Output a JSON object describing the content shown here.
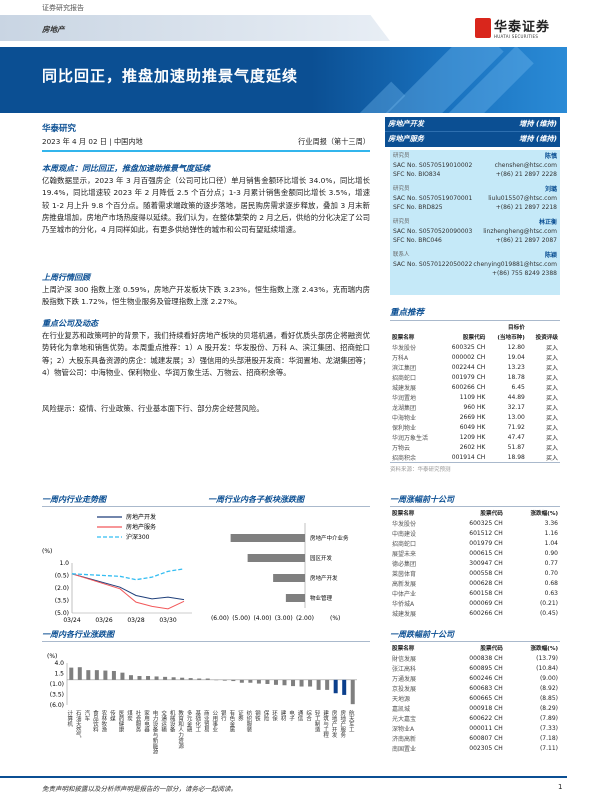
{
  "header": {
    "top_label": "证券研究报告",
    "sector": "房地产",
    "logo_cn": "华泰证券",
    "logo_en": "HUATAI SECURITIES",
    "title": "同比回正，推盘加速助推景气度延续"
  },
  "meta": {
    "org": "华泰研究",
    "date": "2023 年 4 月 02 日 | 中国内地",
    "report_type": "行业周报（第十三周）"
  },
  "ratings": [
    {
      "sector": "房地产开发",
      "rating": "增持",
      "note": "(维持)"
    },
    {
      "sector": "房地产服务",
      "rating": "增持",
      "note": "(维持)"
    }
  ],
  "analysts": [
    {
      "role": "研究员",
      "name": "陈慎",
      "sac": "SAC No. S0570519010002",
      "sfc": "SFC No. BIO834",
      "email": "chenshen@htsc.com",
      "phone": "+(86) 21 2897 2228"
    },
    {
      "role": "研究员",
      "name": "刘璐",
      "sac": "SAC No. S0570519070001",
      "sfc": "SFC No. BRD825",
      "email": "liulu015507@htsc.com",
      "phone": "+(86) 21 2897 2218"
    },
    {
      "role": "研究员",
      "name": "林正衡",
      "sac": "SAC No. S0570520090003",
      "sfc": "SFC No. BRC046",
      "email": "linzhengheng@htsc.com",
      "phone": "+(86) 21 2897 2087"
    },
    {
      "role": "联系人",
      "name": "陈颖",
      "sac": "SAC No. S0570122050022",
      "sfc": "",
      "email": "chenying019881@htsc.com",
      "phone": "+(86) 755 8249 2388"
    }
  ],
  "sections": {
    "view_title": "本周观点：同比回正，推盘加速助推景气度延续",
    "view_text": "亿翰数据显示，2023 年 3 月百强房企（公司可比口径）单月销售金额环比增长 34.0%，同比增长 19.4%，同比增速较 2023 年 2 月降低 2.5 个百分点；1-3 月累计销售金额同比增长 3.5%，增速较 1-2 月上升 9.8 个百分点。随着需求端政策的逐步落地，居民购房需求逐步释放，叠加 3 月末新房推盘增加，房地产市场热度得以延续。我们认为，在整体繁荣的 2 月之后，供给的分化决定了公司乃至城市的分化，4 月同样如此，有更多供给弹性的城市和公司有望延续增速。",
    "market_title": "上周行情回顾",
    "market_text": "上周沪深 300 指数上涨 0.59%，房地产开发板块下跌 3.23%，恒生指数上涨 2.43%，克而瑞内房股指数下跌 1.72%，恒生物业服务及管理指数上涨 2.27%。",
    "company_title": "重点公司及动态",
    "company_text": "在行业复苏和政策呵护的背景下，我们持续看好房地产板块的贝塔机遇，看好优质头部房企将融资优势转化为拿地和销售优势。本周重点推荐：1）A 股开发：华发股份、万科 A、滨江集团、招商蛇口等；2）大股东具备资源的房企：城建发展；3）强信用的头部港股开发商：华润置地、龙湖集团等；4）物管公司：中海物业、保利物业、华润万象生活、万物云、招商积余等。",
    "risk_text": "风险提示：疫情、行业政策、行业基本面下行、部分房企经营风险。"
  },
  "picks": {
    "title": "重点推荐",
    "headers": [
      "股票名称",
      "股票代码",
      "目标价",
      "(当地币种)",
      "投资评级"
    ],
    "rows": [
      [
        "华发股份",
        "600325 CH",
        "12.80",
        "买入"
      ],
      [
        "万科A",
        "000002 CH",
        "19.04",
        "买入"
      ],
      [
        "滨江集团",
        "002244 CH",
        "13.23",
        "买入"
      ],
      [
        "招商蛇口",
        "001979 CH",
        "18.78",
        "买入"
      ],
      [
        "城建发展",
        "600266 CH",
        "6.45",
        "买入"
      ],
      [
        "华润置地",
        "1109 HK",
        "44.89",
        "买入"
      ],
      [
        "龙湖集团",
        "960 HK",
        "32.17",
        "买入"
      ],
      [
        "中海物业",
        "2669 HK",
        "13.00",
        "买入"
      ],
      [
        "保利物业",
        "6049 HK",
        "71.92",
        "买入"
      ],
      [
        "华润万象生活",
        "1209 HK",
        "47.47",
        "买入"
      ],
      [
        "万物云",
        "2602 HK",
        "51.87",
        "买入"
      ],
      [
        "招商积余",
        "001914 CH",
        "18.98",
        "买入"
      ]
    ],
    "source": "资料来源：华泰研究预测"
  },
  "gainers": {
    "title": "一周涨幅前十公司",
    "headers": [
      "股票名称",
      "股票代码",
      "涨跌幅(%)"
    ],
    "rows": [
      [
        "华发股份",
        "600325 CH",
        "3.36"
      ],
      [
        "中南建设",
        "601512 CH",
        "1.16"
      ],
      [
        "招商蛇口",
        "001979 CH",
        "1.04"
      ],
      [
        "展望未来",
        "000615 CH",
        "0.90"
      ],
      [
        "德必集团",
        "300947 CH",
        "0.77"
      ],
      [
        "莱茵体育",
        "000558 CH",
        "0.70"
      ],
      [
        "高新发展",
        "000628 CH",
        "0.68"
      ],
      [
        "中体产业",
        "600158 CH",
        "0.63"
      ],
      [
        "华侨城A",
        "000069 CH",
        "(0.21)"
      ],
      [
        "城建发展",
        "600266 CH",
        "(0.45)"
      ]
    ]
  },
  "losers": {
    "title": "一周跌幅前十公司",
    "headers": [
      "股票名称",
      "股票代码",
      "涨跌幅(%)"
    ],
    "rows": [
      [
        "財信发展",
        "000838 CH",
        "(13.79)"
      ],
      [
        "张江高科",
        "600895 CH",
        "(10.84)"
      ],
      [
        "万通发展",
        "600246 CH",
        "(9.00)"
      ],
      [
        "京投发展",
        "600683 CH",
        "(8.92)"
      ],
      [
        "天地源",
        "600665 CH",
        "(8.85)"
      ],
      [
        "嘉凯城",
        "000918 CH",
        "(8.29)"
      ],
      [
        "光大嘉宝",
        "600622 CH",
        "(7.89)"
      ],
      [
        "深物业A",
        "000011 CH",
        "(7.33)"
      ],
      [
        "济南高新",
        "600807 CH",
        "(7.18)"
      ],
      [
        "南国置业",
        "002305 CH",
        "(7.11)"
      ]
    ]
  },
  "chart_data": [
    {
      "type": "line",
      "title": "一周内行业走势图",
      "ylabel": "(%)",
      "ylim": [
        -5.0,
        1.0
      ],
      "yticks": [
        "1.0",
        "(0.5)",
        "(2.0)",
        "(3.5)",
        "(5.0)"
      ],
      "xticks": [
        "03/24",
        "03/26",
        "03/28",
        "03/30"
      ],
      "x": [
        "2023-03-24",
        "2023-03-27",
        "2023-03-28",
        "2023-03-29",
        "2023-03-30",
        "2023-03-31"
      ],
      "series": [
        {
          "name": "房地产开发",
          "color": "#1f3f7a",
          "dash": false,
          "values": [
            -0.3,
            -1.9,
            -2.9,
            -3.3,
            -3.1,
            -3.4
          ]
        },
        {
          "name": "房地产服务",
          "color": "#f2585a",
          "dash": false,
          "values": [
            -0.3,
            -2.1,
            -3.7,
            -4.2,
            -4.5,
            -3.6
          ]
        },
        {
          "name": "沪深300",
          "color": "#33bdf2",
          "dash": true,
          "values": [
            -0.3,
            -0.6,
            -1.0,
            -0.7,
            0.0,
            0.3
          ]
        }
      ],
      "legend": "top"
    },
    {
      "type": "bar",
      "orientation": "horizontal",
      "title": "一周行业内各子板块涨跌图",
      "xlabel": "(%)",
      "xlim": [
        -6.0,
        -2.0
      ],
      "xticks": [
        "(6.00)",
        "(5.00)",
        "(4.00)",
        "(3.00)",
        "(2.00)"
      ],
      "categories": [
        "房地产中介业务",
        "园区开发",
        "房地产开发",
        "物业管理"
      ],
      "values": [
        -5.5,
        -4.7,
        -3.5,
        -2.9
      ],
      "color": "#7f7f7f"
    },
    {
      "type": "bar",
      "title": "一周内各行业涨跌图",
      "ylabel": "(%)",
      "ylim": [
        -6.0,
        4.0
      ],
      "yticks": [
        "4.0",
        "1.5",
        "(1.0)",
        "(3.5)",
        "(6.0)"
      ],
      "categories": [
        "计算机",
        "石油天然气",
        "汽车",
        "食品饮料",
        "农林牧渔",
        "传媒",
        "医药健康",
        "煤炭",
        "社会服务",
        "家用电器",
        "电力设备与新能源",
        "交通运输",
        "机械设备",
        "教育和人力资源",
        "多元金融",
        "基础化工",
        "商业贸易",
        "公用事业",
        "银行",
        "有色金属",
        "证券",
        "纺织服装",
        "钢铁",
        "保险",
        "环保",
        "建材",
        "电子",
        "通信",
        "综合",
        "轻工制造",
        "建筑与工程",
        "房地产开发",
        "房地产服务",
        "航天军工"
      ],
      "values": [
        2.9,
        3.0,
        2.3,
        2.3,
        2.2,
        2.1,
        1.7,
        1.1,
        0.9,
        0.9,
        0.8,
        0.7,
        0.6,
        0.5,
        0.4,
        0.3,
        0.3,
        -0.1,
        -0.2,
        -0.3,
        -0.7,
        -0.7,
        -0.9,
        -1.0,
        -1.2,
        -1.3,
        -1.5,
        -1.6,
        -1.6,
        -2.4,
        -2.4,
        -3.2,
        -3.6,
        -5.8
      ],
      "color": "#7f7f7f",
      "highlight": [
        "房地产开发",
        "房地产服务"
      ],
      "highlight_color": "#0b3f8c"
    }
  ],
  "footer": {
    "disclaimer": "免责声明和披露以及分析师声明是报告的一部分，请务必一起阅读。",
    "page": "1"
  }
}
